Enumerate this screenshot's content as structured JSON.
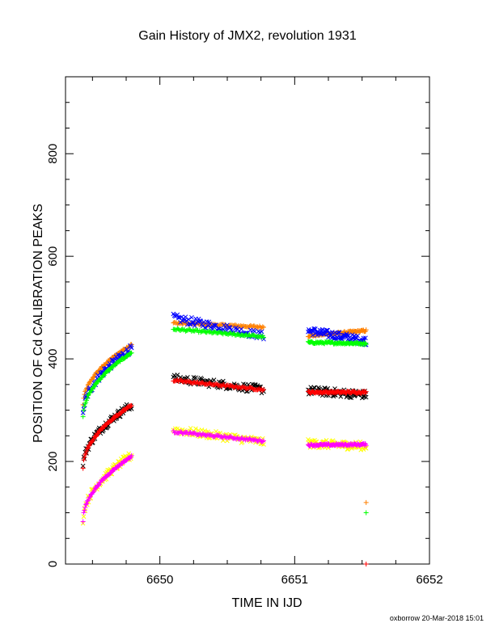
{
  "chart_data": {
    "type": "scatter",
    "title": "Gain History of JMX2, revolution 1931",
    "xlabel": "TIME IN IJD",
    "ylabel": "POSITION OF Cd CALIBRATION PEAKS",
    "xlim": [
      6649.3,
      6652
    ],
    "ylim": [
      0,
      950
    ],
    "xticks": [
      6650,
      6651,
      6652
    ],
    "xtick_labels": [
      "6650",
      "6651",
      "6652"
    ],
    "yticks": [
      0,
      200,
      400,
      600,
      800
    ],
    "ytick_labels": [
      "0",
      "200",
      "400",
      "600",
      "800"
    ],
    "grid": false,
    "legend": "none",
    "segments": [
      [
        6649.43,
        6649.79
      ],
      [
        6650.1,
        6650.77
      ],
      [
        6651.1,
        6651.53
      ]
    ],
    "series": [
      {
        "color": "#ff8000",
        "marker": "+",
        "start": [
          310,
          470,
          445
        ],
        "end": [
          428,
          462,
          455
        ]
      },
      {
        "color": "#0000ff",
        "marker": "x",
        "start": [
          290,
          480,
          455
        ],
        "end": [
          420,
          445,
          435
        ]
      },
      {
        "color": "#00ff00",
        "marker": "+",
        "start": [
          287,
          458,
          432
        ],
        "end": [
          412,
          443,
          430
        ]
      },
      {
        "color": "#000000",
        "marker": "x",
        "start": [
          190,
          362,
          338
        ],
        "end": [
          310,
          340,
          330
        ]
      },
      {
        "color": "#ff0000",
        "marker": "+",
        "start": [
          187,
          358,
          335
        ],
        "end": [
          310,
          340,
          335
        ]
      },
      {
        "color": "#ffff00",
        "marker": "x",
        "start": [
          85,
          262,
          235
        ],
        "end": [
          212,
          238,
          230
        ]
      },
      {
        "color": "#ff00ff",
        "marker": "+",
        "start": [
          84,
          258,
          232
        ],
        "end": [
          210,
          240,
          233
        ]
      }
    ],
    "isolated_points": [
      {
        "color": "#ff8000",
        "marker": "+",
        "x": 6651.53,
        "y": 120
      },
      {
        "color": "#00ff00",
        "marker": "+",
        "x": 6651.53,
        "y": 100
      },
      {
        "color": "#ff0000",
        "marker": "+",
        "x": 6651.53,
        "y": 0
      }
    ]
  },
  "credit": "oxborrow 20-Mar-2018 15:01"
}
